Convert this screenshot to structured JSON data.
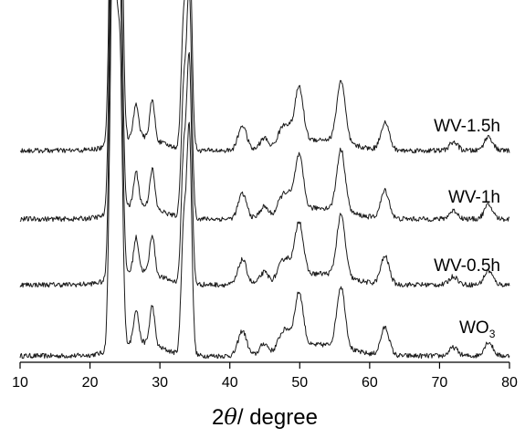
{
  "chart_data": {
    "type": "line",
    "xlabel": "2θ/ degree",
    "xlabel_parts": {
      "prefix": "2",
      "symbol": "θ",
      "suffix": "/ degree"
    },
    "xlim": [
      10,
      80
    ],
    "x_ticks": [
      10,
      20,
      30,
      40,
      50,
      60,
      70,
      80
    ],
    "y_axis_visible": false,
    "grid": false,
    "stacking": "vertical offset",
    "line_color": "#1a1a1a",
    "peak_positions_2theta": [
      23.1,
      23.6,
      24.3,
      26.6,
      28.9,
      33.4,
      34.2,
      41.8,
      44.9,
      47.3,
      48.3,
      49.9,
      55.9,
      62.2,
      72.0,
      77.0
    ],
    "series": [
      {
        "name": "WO3",
        "label_main": "WO",
        "label_sub": "3",
        "peaks": [
          {
            "x": 23.1,
            "h": 1.0
          },
          {
            "x": 23.6,
            "h": 0.95
          },
          {
            "x": 24.3,
            "h": 0.98
          },
          {
            "x": 26.6,
            "h": 0.12
          },
          {
            "x": 28.9,
            "h": 0.14
          },
          {
            "x": 33.4,
            "h": 0.45
          },
          {
            "x": 34.2,
            "h": 0.8
          },
          {
            "x": 41.8,
            "h": 0.09
          },
          {
            "x": 44.9,
            "h": 0.04
          },
          {
            "x": 47.3,
            "h": 0.05
          },
          {
            "x": 48.3,
            "h": 0.06
          },
          {
            "x": 49.9,
            "h": 0.2
          },
          {
            "x": 55.9,
            "h": 0.22
          },
          {
            "x": 62.2,
            "h": 0.1
          },
          {
            "x": 72.0,
            "h": 0.03
          },
          {
            "x": 77.0,
            "h": 0.05
          }
        ]
      },
      {
        "name": "WV-0.5h",
        "label_main": "WV-0.5h",
        "peaks": [
          {
            "x": 23.1,
            "h": 1.0
          },
          {
            "x": 23.6,
            "h": 0.95
          },
          {
            "x": 24.3,
            "h": 0.98
          },
          {
            "x": 26.6,
            "h": 0.12
          },
          {
            "x": 28.9,
            "h": 0.14
          },
          {
            "x": 33.4,
            "h": 0.45
          },
          {
            "x": 34.2,
            "h": 0.8
          },
          {
            "x": 41.8,
            "h": 0.09
          },
          {
            "x": 44.9,
            "h": 0.04
          },
          {
            "x": 47.3,
            "h": 0.05
          },
          {
            "x": 48.3,
            "h": 0.06
          },
          {
            "x": 49.9,
            "h": 0.2
          },
          {
            "x": 55.9,
            "h": 0.22
          },
          {
            "x": 62.2,
            "h": 0.1
          },
          {
            "x": 72.0,
            "h": 0.03
          },
          {
            "x": 77.0,
            "h": 0.05
          }
        ]
      },
      {
        "name": "WV-1h",
        "label_main": "WV-1h",
        "peaks": [
          {
            "x": 23.1,
            "h": 1.0
          },
          {
            "x": 23.6,
            "h": 0.95
          },
          {
            "x": 24.3,
            "h": 0.98
          },
          {
            "x": 26.6,
            "h": 0.12
          },
          {
            "x": 28.9,
            "h": 0.14
          },
          {
            "x": 33.4,
            "h": 0.45
          },
          {
            "x": 34.2,
            "h": 0.8
          },
          {
            "x": 41.8,
            "h": 0.09
          },
          {
            "x": 44.9,
            "h": 0.04
          },
          {
            "x": 47.3,
            "h": 0.05
          },
          {
            "x": 48.3,
            "h": 0.06
          },
          {
            "x": 49.9,
            "h": 0.2
          },
          {
            "x": 55.9,
            "h": 0.22
          },
          {
            "x": 62.2,
            "h": 0.1
          },
          {
            "x": 72.0,
            "h": 0.03
          },
          {
            "x": 77.0,
            "h": 0.05
          }
        ]
      },
      {
        "name": "WV-1.5h",
        "label_main": "WV-1.5h",
        "peaks": [
          {
            "x": 23.1,
            "h": 1.0
          },
          {
            "x": 23.6,
            "h": 0.95
          },
          {
            "x": 24.3,
            "h": 1.25
          },
          {
            "x": 26.6,
            "h": 0.12
          },
          {
            "x": 28.9,
            "h": 0.14
          },
          {
            "x": 33.4,
            "h": 0.45
          },
          {
            "x": 34.2,
            "h": 0.8
          },
          {
            "x": 41.8,
            "h": 0.09
          },
          {
            "x": 44.9,
            "h": 0.04
          },
          {
            "x": 47.3,
            "h": 0.05
          },
          {
            "x": 48.3,
            "h": 0.06
          },
          {
            "x": 49.9,
            "h": 0.2
          },
          {
            "x": 55.9,
            "h": 0.22
          },
          {
            "x": 62.2,
            "h": 0.1
          },
          {
            "x": 72.0,
            "h": 0.03
          },
          {
            "x": 77.0,
            "h": 0.05
          }
        ]
      }
    ]
  }
}
